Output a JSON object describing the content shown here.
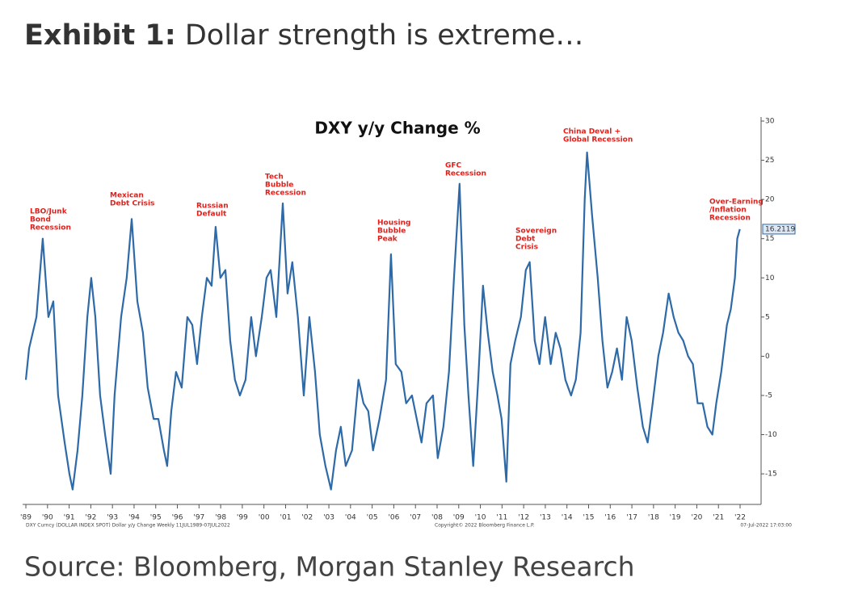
{
  "header": {
    "label": "Exhibit 1:",
    "title": "Dollar strength is extreme…"
  },
  "source": "Source: Bloomberg, Morgan Stanley Research",
  "chart_data": {
    "type": "line",
    "title": "DXY y/y Change %",
    "color": "#2e6aa8",
    "x": [
      1989.5,
      1989.65,
      1989.99,
      1990.28,
      1990.54,
      1990.77,
      1990.99,
      1991.29,
      1991.51,
      1991.66,
      1991.89,
      1992.11,
      1992.34,
      1992.52,
      1992.71,
      1992.93,
      1993.16,
      1993.42,
      1993.6,
      1993.9,
      1994.16,
      1994.39,
      1994.65,
      1994.91,
      1995.13,
      1995.4,
      1995.62,
      1995.88,
      1996.03,
      1996.22,
      1996.44,
      1996.7,
      1996.96,
      1997.19,
      1997.41,
      1997.63,
      1997.86,
      1998.08,
      1998.27,
      1998.49,
      1998.72,
      1998.94,
      1999.16,
      1999.39,
      1999.65,
      1999.91,
      2000.13,
      2000.4,
      2000.62,
      2000.81,
      2001.07,
      2001.37,
      2001.59,
      2001.81,
      2002.07,
      2002.34,
      2002.6,
      2002.86,
      2003.08,
      2003.34,
      2003.6,
      2003.83,
      2004.05,
      2004.28,
      2004.57,
      2004.87,
      2005.1,
      2005.32,
      2005.54,
      2005.84,
      2006.14,
      2006.37,
      2006.59,
      2006.85,
      2007.07,
      2007.34,
      2007.56,
      2007.78,
      2008.01,
      2008.31,
      2008.53,
      2008.79,
      2009.05,
      2009.28,
      2009.54,
      2009.76,
      2009.95,
      2010.17,
      2010.4,
      2010.62,
      2010.84,
      2011.07,
      2011.29,
      2011.48,
      2011.7,
      2011.89,
      2012.11,
      2012.37,
      2012.6,
      2012.78,
      2013.01,
      2013.23,
      2013.49,
      2013.75,
      2013.98,
      2014.2,
      2014.43,
      2014.69,
      2014.91,
      2015.13,
      2015.32,
      2015.43,
      2015.66,
      2015.92,
      2016.14,
      2016.37,
      2016.59,
      2016.81,
      2017.04,
      2017.26,
      2017.49,
      2017.75,
      2018.01,
      2018.23,
      2018.46,
      2018.72,
      2018.94,
      2019.2,
      2019.43,
      2019.65,
      2019.87,
      2020.1,
      2020.32,
      2020.54,
      2020.77,
      2020.99,
      2021.22,
      2021.4,
      2021.63,
      2021.89,
      2022.07,
      2022.26,
      2022.37,
      2022.49
    ],
    "values": [
      -3,
      1,
      5,
      15,
      5,
      7,
      -5,
      -11,
      -15,
      -17,
      -12,
      -5,
      5,
      10,
      5,
      -5,
      -10,
      -15,
      -5,
      5,
      10,
      17.5,
      7,
      3,
      -4,
      -8,
      -8,
      -12,
      -14,
      -7,
      -2,
      -4,
      5,
      4,
      -1,
      5,
      10,
      9,
      16.5,
      10,
      11,
      2,
      -3,
      -5,
      -3,
      5,
      0,
      5,
      10,
      11,
      5,
      19.5,
      8,
      12,
      5,
      -5,
      5,
      -2,
      -10,
      -14,
      -17,
      -12,
      -9,
      -14,
      -12,
      -3,
      -6,
      -7,
      -12,
      -8,
      -3,
      13,
      -1,
      -2,
      -6,
      -5,
      -8,
      -11,
      -6,
      -5,
      -13,
      -9,
      -2,
      10,
      22,
      4,
      -5,
      -14,
      -3,
      9,
      3,
      -2,
      -5,
      -8,
      -16,
      -1,
      2,
      5,
      11,
      12,
      2,
      -1,
      5,
      -1,
      3,
      1,
      -3,
      -5,
      -3,
      3,
      20,
      26,
      18,
      10,
      2,
      -4,
      -2,
      1,
      -3,
      5,
      2,
      -4,
      -9,
      -11,
      -6,
      0,
      3,
      8,
      5,
      3,
      2,
      0,
      -1,
      -6,
      -6,
      -9,
      -10,
      -6,
      -2,
      4,
      6,
      10,
      15,
      16.2119
    ],
    "last_value": 16.2119,
    "xlim": [
      1989.35,
      2023.47
    ],
    "ylim": [
      -18.9,
      30
    ],
    "yticks": [
      -15,
      -10,
      -5,
      0,
      5,
      10,
      15,
      20,
      25,
      30
    ],
    "xticks": [
      {
        "value": 1989.5,
        "label": "'89"
      },
      {
        "value": 1990.5,
        "label": "'90"
      },
      {
        "value": 1991.5,
        "label": "'91"
      },
      {
        "value": 1992.5,
        "label": "'92"
      },
      {
        "value": 1993.5,
        "label": "'93"
      },
      {
        "value": 1994.5,
        "label": "'94"
      },
      {
        "value": 1995.5,
        "label": "'95"
      },
      {
        "value": 1996.5,
        "label": "'96"
      },
      {
        "value": 1997.5,
        "label": "'97"
      },
      {
        "value": 1998.5,
        "label": "'98"
      },
      {
        "value": 1999.5,
        "label": "'99"
      },
      {
        "value": 2000.5,
        "label": "'00"
      },
      {
        "value": 2001.5,
        "label": "'01"
      },
      {
        "value": 2002.5,
        "label": "'02"
      },
      {
        "value": 2003.5,
        "label": "'03"
      },
      {
        "value": 2004.5,
        "label": "'04"
      },
      {
        "value": 2005.5,
        "label": "'05"
      },
      {
        "value": 2006.5,
        "label": "'06"
      },
      {
        "value": 2007.5,
        "label": "'07"
      },
      {
        "value": 2008.5,
        "label": "'08"
      },
      {
        "value": 2009.5,
        "label": "'09"
      },
      {
        "value": 2010.5,
        "label": "'10"
      },
      {
        "value": 2011.5,
        "label": "'11"
      },
      {
        "value": 2012.5,
        "label": "'12"
      },
      {
        "value": 2013.5,
        "label": "'13"
      },
      {
        "value": 2014.5,
        "label": "'14"
      },
      {
        "value": 2015.5,
        "label": "'15"
      },
      {
        "value": 2016.5,
        "label": "'16"
      },
      {
        "value": 2017.5,
        "label": "'17"
      },
      {
        "value": 2018.5,
        "label": "'18"
      },
      {
        "value": 2019.5,
        "label": "'19"
      },
      {
        "value": 2020.5,
        "label": "'20"
      },
      {
        "value": 2021.5,
        "label": "'21"
      },
      {
        "value": 2022.5,
        "label": "'22"
      }
    ],
    "annotations": [
      [
        "LBO/Junk",
        "Bond",
        "Recession"
      ],
      [
        "Mexican",
        "Debt Crisis"
      ],
      [
        "Russian",
        "Default"
      ],
      [
        "Tech",
        "Bubble",
        "Recession"
      ],
      [
        "Housing",
        "Bubble",
        "Peak"
      ],
      [
        "GFC",
        "Recession"
      ],
      [
        "Sovereign",
        "Debt",
        "Crisis"
      ],
      [
        "China Deval +",
        "Global Recession"
      ],
      [
        "Over-Earning",
        "/Inflation",
        "Recession"
      ]
    ],
    "footer": {
      "series_info": "DXY Curncy (DOLLAR INDEX SPOT) Dollar y/y Change  Weekly 11JUL1989-07JUL2022",
      "copyright": "Copyright© 2022 Bloomberg Finance L.P.",
      "timestamp": "07-Jul-2022 17:03:00"
    }
  }
}
